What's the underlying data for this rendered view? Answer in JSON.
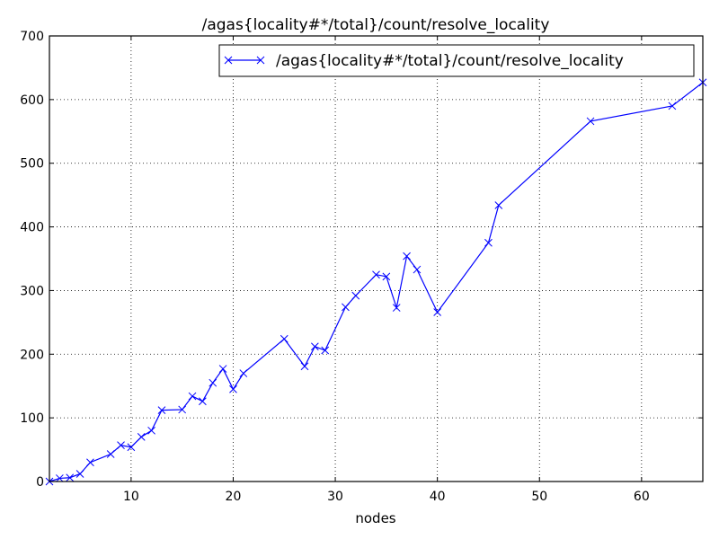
{
  "chart_data": {
    "type": "line",
    "title": "/agas{locality#*/total}/count/resolve_locality",
    "xlabel": "nodes",
    "ylabel": "",
    "xlim": [
      2,
      66
    ],
    "ylim": [
      0,
      700
    ],
    "xticks": [
      10,
      20,
      30,
      40,
      50,
      60
    ],
    "yticks": [
      0,
      100,
      200,
      300,
      400,
      500,
      600,
      700
    ],
    "grid": true,
    "legend_position": "upper right",
    "series": [
      {
        "name": "/agas{locality#*/total}/count/resolve_locality",
        "color": "#0000ff",
        "marker": "x",
        "x": [
          2,
          3,
          4,
          5,
          6,
          8,
          9,
          10,
          11,
          12,
          13,
          15,
          16,
          17,
          18,
          19,
          20,
          21,
          25,
          27,
          28,
          29,
          31,
          32,
          34,
          35,
          36,
          37,
          38,
          40,
          45,
          46,
          55,
          63,
          66
        ],
        "values": [
          0,
          5,
          6,
          12,
          30,
          43,
          57,
          54,
          70,
          80,
          112,
          113,
          134,
          126,
          155,
          177,
          145,
          170,
          224,
          181,
          212,
          206,
          274,
          292,
          325,
          322,
          273,
          354,
          333,
          266,
          375,
          434,
          566,
          590,
          627
        ]
      }
    ]
  }
}
